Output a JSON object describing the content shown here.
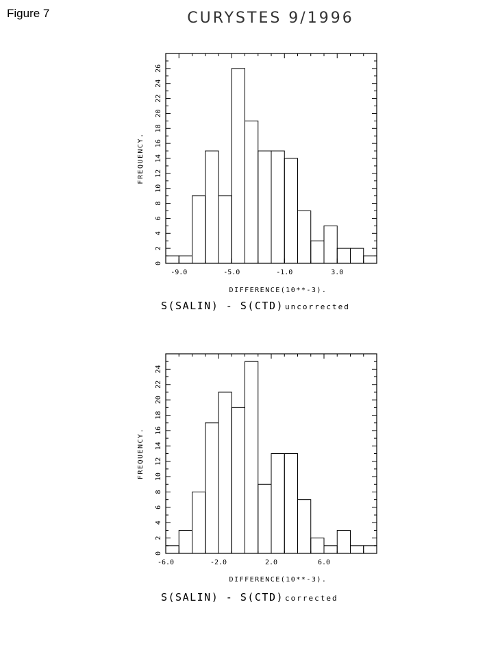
{
  "figure_label": "Figure 7",
  "page_title": "CURYSTES 9/1996",
  "chart_data": [
    {
      "type": "bar",
      "name": "uncorrected",
      "values": [
        1,
        1,
        9,
        15,
        9,
        26,
        19,
        15,
        15,
        14,
        7,
        3,
        5,
        2,
        2,
        1
      ],
      "bin_start": -10.0,
      "bin_width": 1.0,
      "xlim": [
        -10.0,
        6.0
      ],
      "ylim": [
        0,
        28
      ],
      "xticks": [
        -9.0,
        -5.0,
        -1.0,
        3.0
      ],
      "xtick_labels": [
        "-9.0",
        "-5.0",
        "-1.0",
        "3.0"
      ],
      "yticks": [
        0,
        2,
        4,
        6,
        8,
        10,
        12,
        14,
        16,
        18,
        20,
        22,
        24,
        26
      ],
      "ylabel": "FREQUENCY.",
      "xlabel": "DIFFERENCE(10**-3).",
      "title_main": "S(SALIN)  - S(CTD)",
      "title_suffix": "uncorrected"
    },
    {
      "type": "bar",
      "name": "corrected",
      "values": [
        1,
        3,
        8,
        17,
        21,
        19,
        25,
        9,
        13,
        13,
        7,
        2,
        1,
        3,
        1,
        1
      ],
      "bin_start": -6.0,
      "bin_width": 1.0,
      "xlim": [
        -6.0,
        10.0
      ],
      "ylim": [
        0,
        26
      ],
      "xticks": [
        -6.0,
        -2.0,
        2.0,
        6.0
      ],
      "xtick_labels": [
        "-6.0",
        "-2.0",
        "2.0",
        "6.0"
      ],
      "yticks": [
        0,
        2,
        4,
        6,
        8,
        10,
        12,
        14,
        16,
        18,
        20,
        22,
        24
      ],
      "ylabel": "FREQUENCY.",
      "xlabel": "DIFFERENCE(10**-3).",
      "title_main": "S(SALIN)  - S(CTD)",
      "title_suffix": "corrected"
    }
  ]
}
